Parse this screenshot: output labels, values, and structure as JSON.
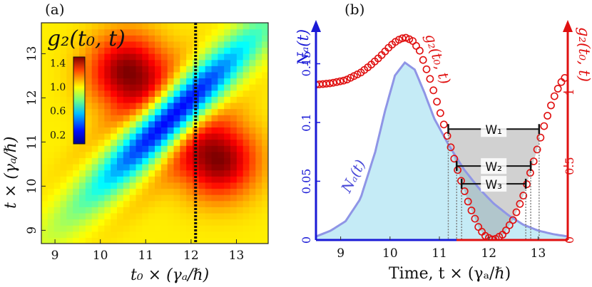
{
  "chart_data": [
    {
      "panel": "(a)",
      "type": "heatmap",
      "colorbar_title": "g₂(t₀, t)",
      "colorbar_ticks": [
        "1.4",
        "1.0",
        "0.6",
        "0.2"
      ],
      "xlabel": "t₀ × (γₐ/ℏ)",
      "ylabel": "t × (γₐ/ℏ)",
      "xlim": [
        8.7,
        13.7
      ],
      "ylim": [
        8.7,
        13.7
      ],
      "x_ticks": [
        "9",
        "10",
        "11",
        "12",
        "13"
      ],
      "y_ticks": [
        "9",
        "10",
        "11",
        "12",
        "13"
      ],
      "grid_cells": 36,
      "hot_spot_centers": [
        [
          10.6,
          12.6
        ],
        [
          12.6,
          10.6
        ]
      ],
      "dashed_line_x": 12.1
    },
    {
      "panel": "(b)",
      "type": "line",
      "xlabel": "Time,  t × (γₐ/ℏ)",
      "xlim": [
        8.5,
        13.6
      ],
      "x_ticks": [
        "9",
        "10",
        "11",
        "12",
        "13"
      ],
      "left_axis": {
        "label": "Nₐ(t)",
        "ylim": [
          0,
          0.18
        ],
        "ticks": [
          "0",
          "0.05",
          "0.1",
          "0.15"
        ],
        "color": "#1a1ad6"
      },
      "right_axis": {
        "label": "g₂(t₀, t)",
        "ylim": [
          0,
          1.43
        ],
        "ticks": [
          "0",
          "0.5",
          "1"
        ],
        "color": "#e01010"
      },
      "series": [
        {
          "name": "Nₐ(t)",
          "axis": "left",
          "color": "#8f95e6",
          "fill": "#c5ebf6",
          "x": [
            8.5,
            8.8,
            9.1,
            9.4,
            9.7,
            9.9,
            10.1,
            10.3,
            10.5,
            10.7,
            10.9,
            11.2,
            11.5,
            11.8,
            12.1,
            12.4,
            12.7,
            13.0,
            13.3,
            13.6
          ],
          "values": [
            0.003,
            0.008,
            0.016,
            0.035,
            0.075,
            0.11,
            0.14,
            0.151,
            0.145,
            0.125,
            0.103,
            0.08,
            0.06,
            0.044,
            0.031,
            0.021,
            0.013,
            0.008,
            0.005,
            0.003
          ]
        },
        {
          "name": "g₂(t₀, t)",
          "axis": "right",
          "color": "#e01010",
          "marker": "circle",
          "x": [
            8.5,
            8.8,
            9.1,
            9.4,
            9.6,
            9.8,
            10.0,
            10.15,
            10.3,
            10.45,
            10.6,
            10.8,
            11.0,
            11.2,
            11.4,
            11.6,
            11.8,
            11.95,
            12.1,
            12.3,
            12.5,
            12.7,
            12.9,
            13.1,
            13.3,
            13.45,
            13.6
          ],
          "values": [
            1.05,
            1.06,
            1.08,
            1.13,
            1.18,
            1.24,
            1.31,
            1.35,
            1.37,
            1.35,
            1.28,
            1.1,
            0.88,
            0.66,
            0.44,
            0.24,
            0.08,
            0.02,
            0.0,
            0.04,
            0.14,
            0.3,
            0.52,
            0.75,
            0.95,
            1.06,
            1.12
          ]
        }
      ],
      "windows": [
        {
          "label": "W₁",
          "x_start": 11.18,
          "x_end": 13.02,
          "g2_level": 0.75
        },
        {
          "label": "W₂",
          "x_start": 11.35,
          "x_end": 12.85,
          "g2_level": 0.5
        },
        {
          "label": "W₃",
          "x_start": 11.45,
          "x_end": 12.75,
          "g2_level": 0.38
        }
      ]
    }
  ],
  "labels": {
    "panel_a": "(a)",
    "panel_b": "(b)"
  }
}
